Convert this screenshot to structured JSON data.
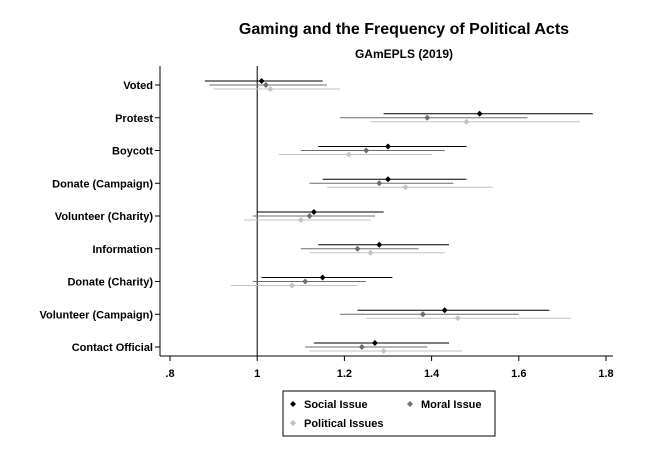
{
  "chart_data": {
    "type": "scatter",
    "title": "Gaming and the Frequency of Political Acts",
    "subtitle": "GAmEPLS (2019)",
    "xlabel": "",
    "ylabel": "",
    "xlim": [
      0.78,
      1.82
    ],
    "x_ticks": [
      ".8",
      "1",
      "1.2",
      "1.4",
      "1.6",
      "1.8"
    ],
    "x_tick_values": [
      0.8,
      1.0,
      1.2,
      1.4,
      1.6,
      1.8
    ],
    "reference_line": 1.0,
    "categories": [
      "Voted",
      "Protest",
      "Boycott",
      "Donate (Campaign)",
      "Volunteer (Charity)",
      "Information",
      "Donate (Charity)",
      "Volunteer (Campaign)",
      "Contact Official"
    ],
    "legend_placement": "bottom",
    "series": [
      {
        "name": "Social Issue",
        "color": "#000000",
        "points": [
          {
            "est": 1.01,
            "lo": 0.88,
            "hi": 1.15
          },
          {
            "est": 1.51,
            "lo": 1.29,
            "hi": 1.77
          },
          {
            "est": 1.3,
            "lo": 1.14,
            "hi": 1.48
          },
          {
            "est": 1.3,
            "lo": 1.15,
            "hi": 1.48
          },
          {
            "est": 1.13,
            "lo": 1.0,
            "hi": 1.29
          },
          {
            "est": 1.28,
            "lo": 1.14,
            "hi": 1.44
          },
          {
            "est": 1.15,
            "lo": 1.01,
            "hi": 1.31
          },
          {
            "est": 1.43,
            "lo": 1.23,
            "hi": 1.67
          },
          {
            "est": 1.27,
            "lo": 1.13,
            "hi": 1.44
          }
        ]
      },
      {
        "name": "Moral Issue",
        "color": "#6e6e6e",
        "points": [
          {
            "est": 1.02,
            "lo": 0.89,
            "hi": 1.16
          },
          {
            "est": 1.39,
            "lo": 1.19,
            "hi": 1.62
          },
          {
            "est": 1.25,
            "lo": 1.1,
            "hi": 1.43
          },
          {
            "est": 1.28,
            "lo": 1.12,
            "hi": 1.45
          },
          {
            "est": 1.12,
            "lo": 0.99,
            "hi": 1.27
          },
          {
            "est": 1.23,
            "lo": 1.1,
            "hi": 1.37
          },
          {
            "est": 1.11,
            "lo": 0.99,
            "hi": 1.25
          },
          {
            "est": 1.38,
            "lo": 1.19,
            "hi": 1.6
          },
          {
            "est": 1.24,
            "lo": 1.11,
            "hi": 1.39
          }
        ]
      },
      {
        "name": "Political Issues",
        "color": "#c3c3c3",
        "points": [
          {
            "est": 1.03,
            "lo": 0.9,
            "hi": 1.19
          },
          {
            "est": 1.48,
            "lo": 1.26,
            "hi": 1.74
          },
          {
            "est": 1.21,
            "lo": 1.05,
            "hi": 1.4
          },
          {
            "est": 1.34,
            "lo": 1.16,
            "hi": 1.54
          },
          {
            "est": 1.1,
            "lo": 0.97,
            "hi": 1.26
          },
          {
            "est": 1.26,
            "lo": 1.12,
            "hi": 1.43
          },
          {
            "est": 1.08,
            "lo": 0.94,
            "hi": 1.23
          },
          {
            "est": 1.46,
            "lo": 1.25,
            "hi": 1.72
          },
          {
            "est": 1.29,
            "lo": 1.12,
            "hi": 1.47
          }
        ]
      }
    ]
  }
}
